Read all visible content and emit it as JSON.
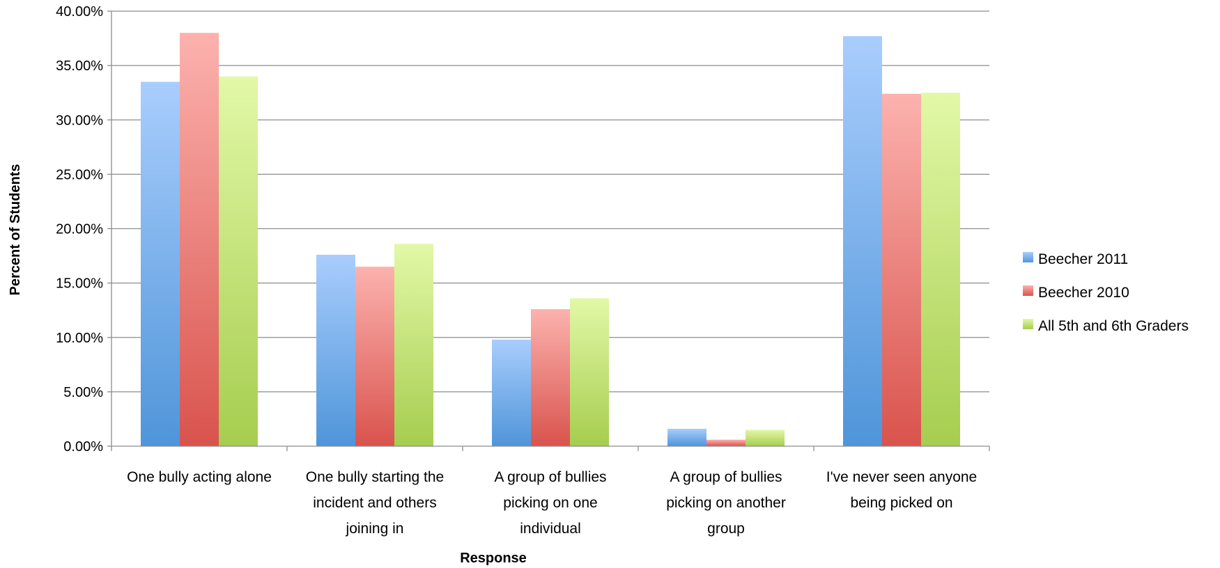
{
  "chart_data": {
    "type": "bar",
    "title": "",
    "xlabel": "Response",
    "ylabel": "Percent of Students",
    "ylim": [
      0,
      0.4
    ],
    "yticks": [
      0,
      0.05,
      0.1,
      0.15,
      0.2,
      0.25,
      0.3,
      0.35,
      0.4
    ],
    "ytick_labels": [
      "0.00%",
      "5.00%",
      "10.00%",
      "15.00%",
      "20.00%",
      "25.00%",
      "30.00%",
      "35.00%",
      "40.00%"
    ],
    "grid": true,
    "legend_position": "right",
    "categories": [
      [
        "One bully acting alone"
      ],
      [
        "One bully starting the",
        "incident and others",
        "joining in"
      ],
      [
        "A group of bullies",
        "picking on one",
        "individual"
      ],
      [
        "A group of bullies",
        "picking on another",
        "group"
      ],
      [
        "I've never seen anyone",
        "being picked on"
      ]
    ],
    "series": [
      {
        "name": "Beecher 2011",
        "values": [
          0.335,
          0.176,
          0.098,
          0.016,
          0.377
        ],
        "color_top": "#a9cdfd",
        "color_bottom": "#4f95d9"
      },
      {
        "name": "Beecher 2010",
        "values": [
          0.38,
          0.165,
          0.126,
          0.006,
          0.324
        ],
        "color_top": "#fcb2ae",
        "color_bottom": "#d9534d"
      },
      {
        "name": "All 5th and 6th Graders",
        "values": [
          0.34,
          0.186,
          0.136,
          0.015,
          0.325
        ],
        "color_top": "#e2f8a7",
        "color_bottom": "#a6cd4f"
      }
    ]
  }
}
